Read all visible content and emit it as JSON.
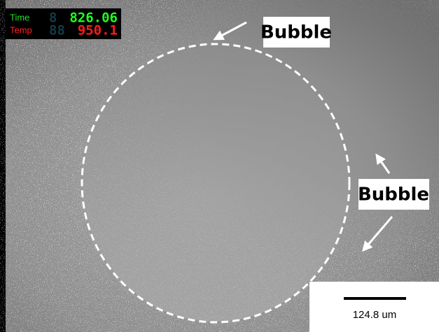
{
  "overlay": {
    "time_label": "Time",
    "time_value": "826.06",
    "temp_label": "Temp",
    "temp_value": "950.1"
  },
  "annotations": [
    {
      "label": "Bubble"
    },
    {
      "label": "Bubble"
    }
  ],
  "scale_bar": {
    "label": "124.8 um"
  }
}
